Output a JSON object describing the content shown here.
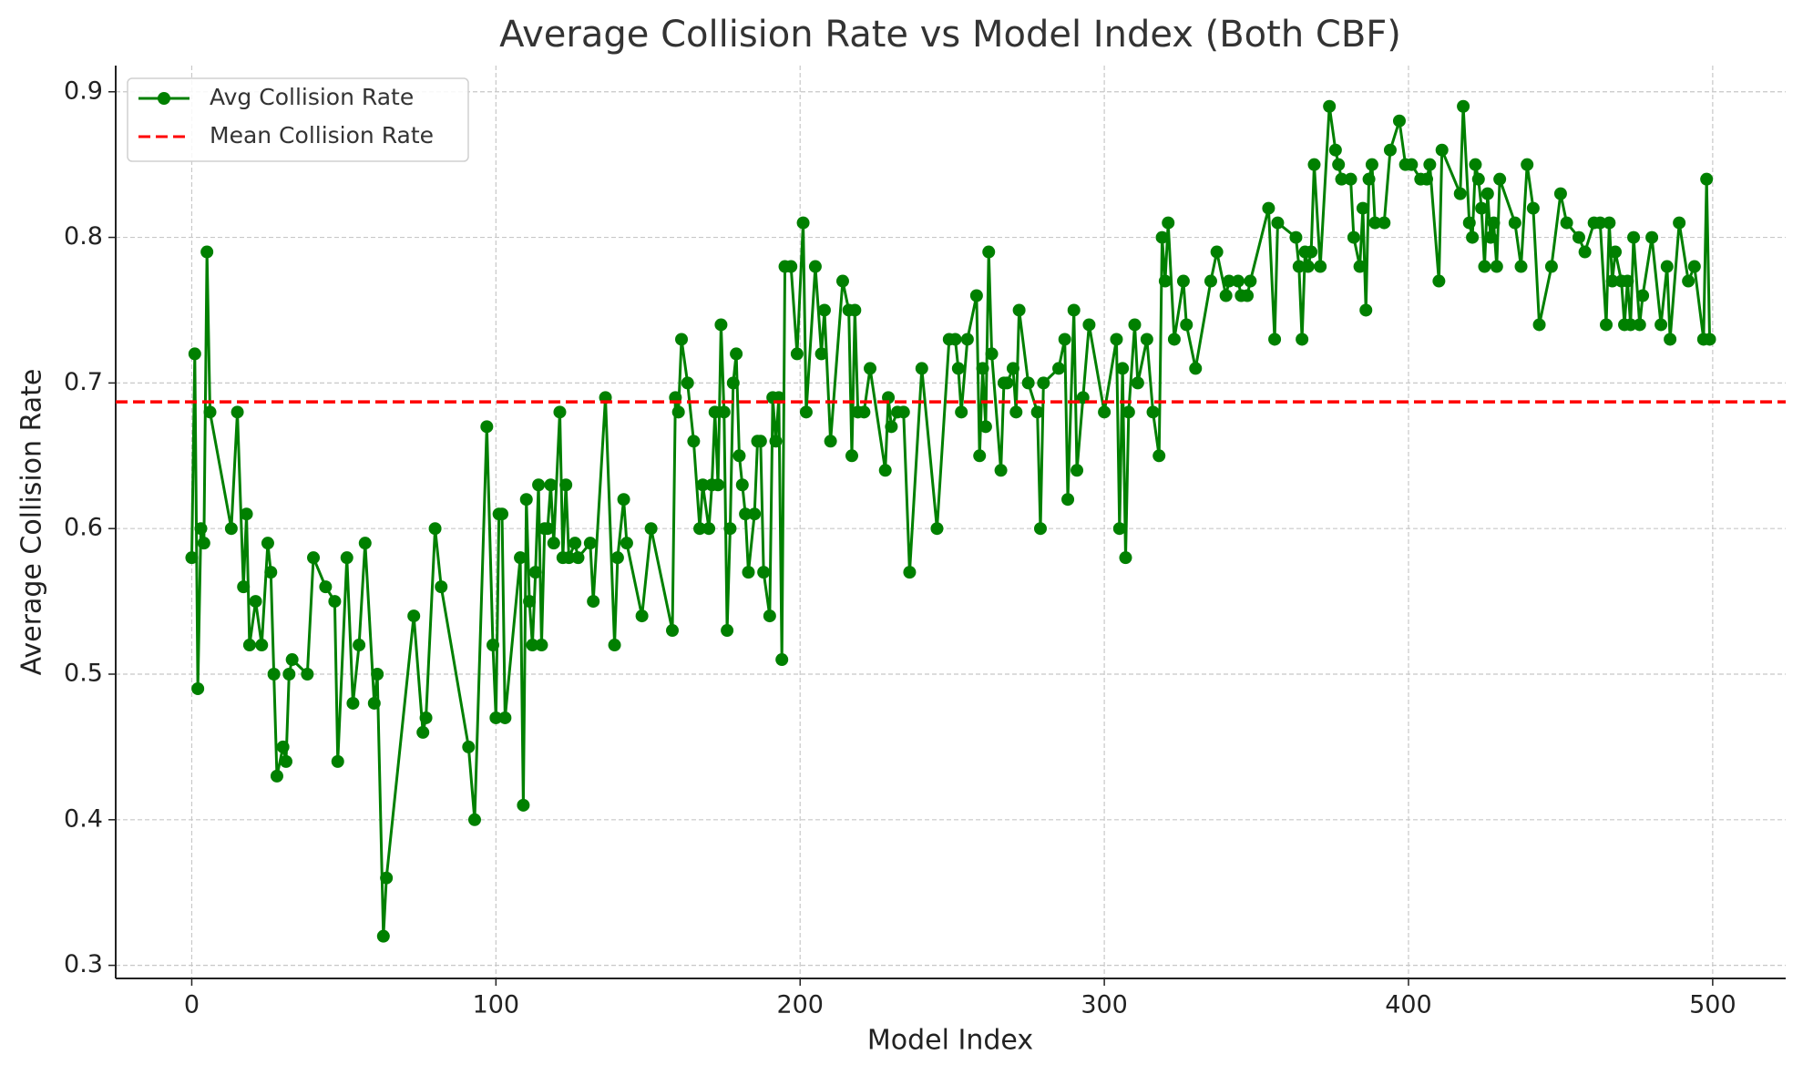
{
  "chart_data": {
    "type": "line",
    "title": "Average Collision Rate vs Model Index (Both CBF)",
    "x_label": "Model Index",
    "y_label": "Average Collision Rate",
    "x": [
      0,
      1,
      2,
      3,
      4,
      5,
      6,
      13,
      15,
      17,
      18,
      19,
      21,
      23,
      25,
      26,
      27,
      28,
      30,
      31,
      32,
      33,
      38,
      40,
      44,
      47,
      48,
      51,
      53,
      55,
      57,
      60,
      61,
      63,
      64,
      73,
      76,
      77,
      80,
      82,
      91,
      93,
      97,
      99,
      100,
      101,
      102,
      103,
      108,
      109,
      110,
      111,
      112,
      113,
      114,
      115,
      116,
      117,
      118,
      119,
      121,
      122,
      123,
      124,
      126,
      127,
      131,
      132,
      136,
      139,
      140,
      142,
      143,
      148,
      151,
      158,
      159,
      160,
      161,
      163,
      165,
      167,
      168,
      170,
      171,
      172,
      173,
      174,
      175,
      176,
      177,
      178,
      179,
      180,
      181,
      182,
      183,
      185,
      186,
      187,
      188,
      190,
      191,
      192,
      193,
      194,
      195,
      197,
      199,
      201,
      202,
      205,
      207,
      208,
      210,
      214,
      216,
      217,
      218,
      219,
      221,
      223,
      228,
      229,
      230,
      232,
      234,
      236,
      240,
      245,
      249,
      251,
      252,
      253,
      255,
      258,
      259,
      260,
      261,
      262,
      263,
      266,
      267,
      268,
      270,
      271,
      272,
      275,
      278,
      279,
      280,
      285,
      287,
      288,
      290,
      291,
      293,
      295,
      300,
      304,
      305,
      306,
      307,
      308,
      310,
      311,
      314,
      316,
      318,
      319,
      320,
      321,
      323,
      326,
      327,
      330,
      335,
      337,
      340,
      341,
      344,
      345,
      347,
      348,
      354,
      356,
      357,
      363,
      364,
      365,
      366,
      367,
      368,
      369,
      371,
      374,
      376,
      377,
      378,
      381,
      382,
      384,
      385,
      386,
      387,
      388,
      389,
      392,
      394,
      397,
      399,
      401,
      404,
      406,
      407,
      410,
      411,
      417,
      418,
      420,
      421,
      422,
      423,
      424,
      425,
      426,
      427,
      428,
      429,
      430,
      435,
      437,
      439,
      441,
      443,
      447,
      450,
      452,
      456,
      458,
      461,
      463,
      465,
      466,
      467,
      468,
      470,
      471,
      472,
      473,
      474,
      476,
      477,
      480,
      483,
      485,
      486,
      489,
      492,
      494,
      497,
      498,
      499
    ],
    "series": [
      {
        "name": "Avg Collision Rate",
        "color": "#008000",
        "values": [
          0.58,
          0.72,
          0.49,
          0.6,
          0.59,
          0.79,
          0.68,
          0.6,
          0.68,
          0.56,
          0.61,
          0.52,
          0.55,
          0.52,
          0.59,
          0.57,
          0.5,
          0.43,
          0.45,
          0.44,
          0.5,
          0.51,
          0.5,
          0.58,
          0.56,
          0.55,
          0.44,
          0.58,
          0.48,
          0.52,
          0.59,
          0.48,
          0.5,
          0.32,
          0.36,
          0.54,
          0.46,
          0.47,
          0.6,
          0.56,
          0.45,
          0.4,
          0.67,
          0.52,
          0.47,
          0.61,
          0.61,
          0.47,
          0.58,
          0.41,
          0.62,
          0.55,
          0.52,
          0.57,
          0.63,
          0.52,
          0.6,
          0.6,
          0.63,
          0.59,
          0.68,
          0.58,
          0.63,
          0.58,
          0.59,
          0.58,
          0.59,
          0.55,
          0.69,
          0.52,
          0.58,
          0.62,
          0.59,
          0.54,
          0.6,
          0.53,
          0.69,
          0.68,
          0.73,
          0.7,
          0.66,
          0.6,
          0.63,
          0.6,
          0.63,
          0.68,
          0.63,
          0.74,
          0.68,
          0.53,
          0.6,
          0.7,
          0.72,
          0.65,
          0.63,
          0.61,
          0.57,
          0.61,
          0.66,
          0.66,
          0.57,
          0.54,
          0.69,
          0.66,
          0.69,
          0.51,
          0.78,
          0.78,
          0.72,
          0.81,
          0.68,
          0.78,
          0.72,
          0.75,
          0.66,
          0.77,
          0.75,
          0.65,
          0.75,
          0.68,
          0.68,
          0.71,
          0.64,
          0.69,
          0.67,
          0.68,
          0.68,
          0.57,
          0.71,
          0.6,
          0.73,
          0.73,
          0.71,
          0.68,
          0.73,
          0.76,
          0.65,
          0.71,
          0.67,
          0.79,
          0.72,
          0.64,
          0.7,
          0.7,
          0.71,
          0.68,
          0.75,
          0.7,
          0.68,
          0.6,
          0.7,
          0.71,
          0.73,
          0.62,
          0.75,
          0.64,
          0.69,
          0.74,
          0.68,
          0.73,
          0.6,
          0.71,
          0.58,
          0.68,
          0.74,
          0.7,
          0.73,
          0.68,
          0.65,
          0.8,
          0.77,
          0.81,
          0.73,
          0.77,
          0.74,
          0.71,
          0.77,
          0.79,
          0.76,
          0.77,
          0.77,
          0.76,
          0.76,
          0.77,
          0.82,
          0.73,
          0.81,
          0.8,
          0.78,
          0.73,
          0.79,
          0.78,
          0.79,
          0.85,
          0.78,
          0.89,
          0.86,
          0.85,
          0.84,
          0.84,
          0.8,
          0.78,
          0.82,
          0.75,
          0.84,
          0.85,
          0.81,
          0.81,
          0.86,
          0.88,
          0.85,
          0.85,
          0.84,
          0.84,
          0.85,
          0.77,
          0.86,
          0.83,
          0.89,
          0.81,
          0.8,
          0.85,
          0.84,
          0.82,
          0.78,
          0.83,
          0.8,
          0.81,
          0.78,
          0.84,
          0.81,
          0.78,
          0.85,
          0.82,
          0.74,
          0.78,
          0.83,
          0.81,
          0.8,
          0.79,
          0.81,
          0.81,
          0.74,
          0.81,
          0.77,
          0.79,
          0.77,
          0.74,
          0.77,
          0.74,
          0.8,
          0.74,
          0.76,
          0.8,
          0.74,
          0.78,
          0.73,
          0.81,
          0.77,
          0.78,
          0.73,
          0.84,
          0.73
        ]
      }
    ],
    "reference_lines": [
      {
        "name": "Mean Collision Rate",
        "color": "#ff0000",
        "value": 0.687
      }
    ],
    "xlim": [
      -25,
      524
    ],
    "ylim": [
      0.291,
      0.918
    ],
    "xticks": [
      0,
      100,
      200,
      300,
      400,
      500
    ],
    "yticks": [
      0.3,
      0.4,
      0.5,
      0.6,
      0.7,
      0.8,
      0.9
    ],
    "grid": true,
    "legend": "upper left"
  }
}
